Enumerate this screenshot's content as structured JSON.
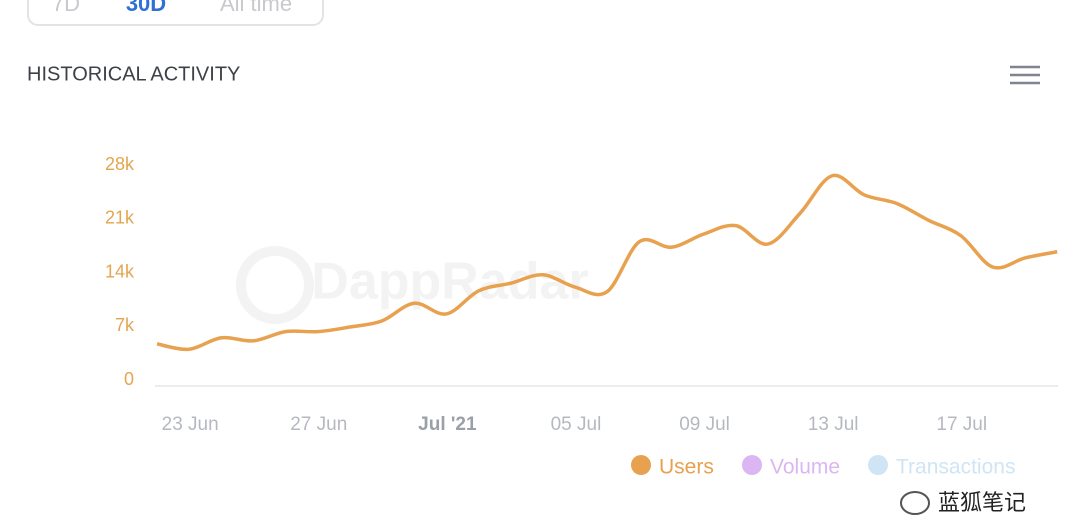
{
  "tabs": {
    "items": [
      "7D",
      "30D",
      "All time"
    ],
    "active": 1
  },
  "watermark": "DappRadar",
  "credit": "蓝狐笔记",
  "chart_data": {
    "type": "line",
    "title": "HISTORICAL ACTIVITY",
    "categories": [
      null,
      "23 Jun",
      null,
      null,
      null,
      "27 Jun",
      null,
      null,
      null,
      "Jul '21",
      null,
      null,
      null,
      "05 Jul",
      null,
      null,
      null,
      "09 Jul",
      null,
      null,
      null,
      "13 Jul",
      null,
      null,
      null,
      "17 Jul",
      null,
      null,
      null
    ],
    "bold_categories": [
      9
    ],
    "series": [
      {
        "name": "Users",
        "color": "#e8a14e",
        "values": [
          4700,
          4000,
          5500,
          5100,
          6300,
          6300,
          6900,
          7700,
          10000,
          8600,
          11600,
          12600,
          13700,
          12100,
          11500,
          18000,
          17300,
          19000,
          20100,
          17700,
          21700,
          26600,
          24100,
          23000,
          20800,
          18800,
          14700,
          15900,
          16700
        ]
      },
      {
        "name": "Volume",
        "color": "#dcb6f2",
        "hidden": true
      },
      {
        "name": "Transactions",
        "color": "#cfe5f5",
        "hidden": true
      }
    ],
    "ylim": [
      0,
      28000
    ],
    "yticks": [
      0,
      {
        "value": 7000,
        "label": "7k"
      },
      {
        "value": 14000,
        "label": "14k"
      },
      {
        "value": 21000,
        "label": "21k"
      },
      {
        "value": 28000,
        "label": "28k"
      }
    ]
  }
}
